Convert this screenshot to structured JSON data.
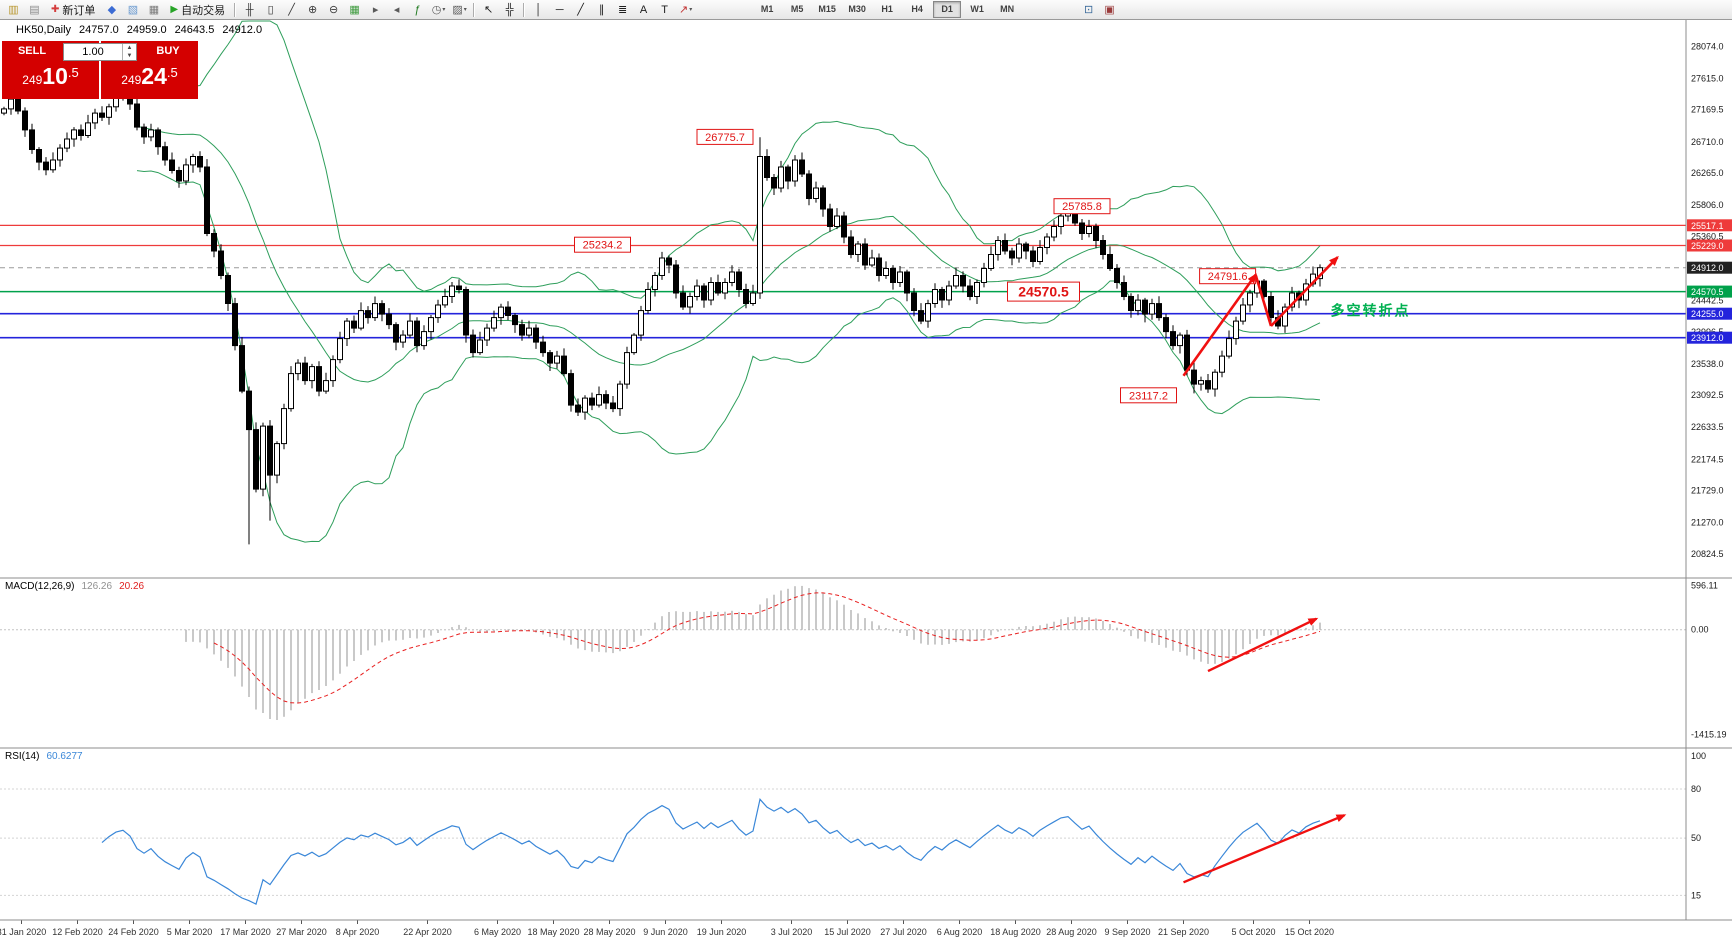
{
  "toolbar": {
    "left_items": [
      {
        "t": "icon",
        "name": "new-chart-icon",
        "g": "▥",
        "c": "#b8962e"
      },
      {
        "t": "icon",
        "name": "chart-profiles-icon",
        "g": "▤",
        "c": "#8a8a8a"
      },
      {
        "t": "btn",
        "name": "new-order-button",
        "g": "✚",
        "gc": "#d43c3c",
        "label": "新订单"
      },
      {
        "t": "icon",
        "name": "market-watch-icon",
        "g": "◆",
        "c": "#3c6cd4"
      },
      {
        "t": "icon",
        "name": "navigator-icon",
        "g": "▧",
        "c": "#6a9ad0"
      },
      {
        "t": "icon",
        "name": "terminal-icon",
        "g": "▦",
        "c": "#7a7a7a"
      },
      {
        "t": "btn",
        "name": "autotrading-button",
        "g": "▶",
        "gc": "#27a427",
        "label": "自动交易"
      },
      {
        "t": "sep"
      },
      {
        "t": "icon",
        "name": "bar-chart-icon",
        "g": "╫",
        "c": "#3a3a3a"
      },
      {
        "t": "icon",
        "name": "candlestick-chart-icon",
        "g": "▯",
        "c": "#3a3a3a"
      },
      {
        "t": "icon",
        "name": "line-chart-icon",
        "g": "╱",
        "c": "#3a3a3a"
      },
      {
        "t": "icon",
        "name": "zoom-in-icon",
        "g": "⊕",
        "c": "#3a3a3a"
      },
      {
        "t": "icon",
        "name": "zoom-out-icon",
        "g": "⊖",
        "c": "#3a3a3a"
      },
      {
        "t": "icon",
        "name": "tile-windows-icon",
        "g": "▦",
        "c": "#3c9a3c"
      },
      {
        "t": "icon",
        "name": "auto-scroll-icon",
        "g": "▸",
        "c": "#5a5a5a"
      },
      {
        "t": "icon",
        "name": "chart-shift-icon",
        "g": "◂",
        "c": "#5a5a5a"
      },
      {
        "t": "icon",
        "name": "indicators-icon",
        "g": "ƒ",
        "c": "#1f7a1f"
      },
      {
        "t": "icon-dd",
        "name": "periods-dropdown",
        "g": "◷",
        "c": "#5a5a5a"
      },
      {
        "t": "icon-dd",
        "name": "templates-dropdown",
        "g": "▨",
        "c": "#5a5a5a"
      },
      {
        "t": "sep"
      },
      {
        "t": "icon",
        "name": "cursor-icon",
        "g": "↖",
        "c": "#202020"
      },
      {
        "t": "icon",
        "name": "crosshair-icon",
        "g": "╬",
        "c": "#202020"
      },
      {
        "t": "sep"
      },
      {
        "t": "icon",
        "name": "vertical-line-icon",
        "g": "│",
        "c": "#202020"
      },
      {
        "t": "icon",
        "name": "horizontal-line-icon",
        "g": "─",
        "c": "#202020"
      },
      {
        "t": "icon",
        "name": "trendline-icon",
        "g": "╱",
        "c": "#202020"
      },
      {
        "t": "icon",
        "name": "equidistant-channel-icon",
        "g": "∥",
        "c": "#202020"
      },
      {
        "t": "icon",
        "name": "fibonacci-icon",
        "g": "≣",
        "c": "#202020"
      },
      {
        "t": "icon",
        "name": "text-icon",
        "g": "A",
        "c": "#202020"
      },
      {
        "t": "icon",
        "name": "text-label-icon",
        "g": "T",
        "c": "#202020"
      },
      {
        "t": "icon-dd",
        "name": "arrows-dropdown",
        "g": "↗",
        "c": "#c03030"
      }
    ],
    "timeframes": {
      "options": [
        "M1",
        "M5",
        "M15",
        "M30",
        "H1",
        "H4",
        "D1",
        "W1",
        "MN"
      ],
      "active": "D1"
    },
    "right_items": [
      {
        "t": "icon",
        "name": "fullscreen-icon",
        "g": "⊡",
        "c": "#3a6a9a"
      },
      {
        "t": "icon",
        "name": "print-preview-icon",
        "g": "▣",
        "c": "#9a3a3a"
      }
    ]
  },
  "header": {
    "symbol": "HK50,Daily",
    "open": "24757.0",
    "high": "24959.0",
    "low": "24643.5",
    "close": "24912.0"
  },
  "one_click": {
    "sell_label": "SELL",
    "buy_label": "BUY",
    "volume": "1.00",
    "bid": {
      "prefix": "249",
      "big": "10",
      "suffix": ".5"
    },
    "ask": {
      "prefix": "249",
      "big": "24",
      "suffix": ".5"
    }
  },
  "indicators": {
    "macd": {
      "label": "MACD(12,26,9)",
      "value_main": "126.26",
      "value_signal": "20.26"
    },
    "rsi": {
      "label": "RSI(14)",
      "value": "60.6277"
    }
  },
  "chart_data": {
    "type": "candlestick",
    "symbol": "HK50",
    "period": "Daily",
    "closes": [
      27180,
      27320,
      27150,
      26880,
      26600,
      26420,
      26310,
      26450,
      26620,
      26750,
      26880,
      26800,
      26980,
      27120,
      27060,
      27210,
      27330,
      27380,
      27250,
      26920,
      26780,
      26880,
      26640,
      26450,
      26300,
      26150,
      26380,
      26500,
      26350,
      25400,
      25150,
      24800,
      24400,
      23800,
      23150,
      22600,
      21750,
      22650,
      21950,
      22400,
      22900,
      23400,
      23550,
      23300,
      23500,
      23150,
      23300,
      23600,
      23900,
      24150,
      24050,
      24300,
      24200,
      24400,
      24250,
      24100,
      23850,
      23950,
      24150,
      23800,
      24000,
      24200,
      24380,
      24500,
      24650,
      24600,
      23950,
      23700,
      23880,
      24050,
      24200,
      24350,
      24230,
      24100,
      23950,
      24050,
      23850,
      23700,
      23550,
      23650,
      23400,
      22950,
      22850,
      23050,
      22950,
      23100,
      22980,
      22900,
      23250,
      23700,
      23950,
      24300,
      24600,
      24800,
      25050,
      24950,
      24550,
      24350,
      24500,
      24650,
      24450,
      24700,
      24550,
      24700,
      24850,
      24600,
      24400,
      24550,
      26500,
      26200,
      26050,
      26350,
      26150,
      26450,
      26250,
      25900,
      26050,
      25750,
      25500,
      25650,
      25350,
      25100,
      25250,
      24950,
      25050,
      24800,
      24900,
      24700,
      24850,
      24550,
      24300,
      24150,
      24400,
      24600,
      24450,
      24650,
      24800,
      24650,
      24500,
      24700,
      24900,
      25100,
      25300,
      25150,
      25050,
      25250,
      25150,
      25000,
      25200,
      25350,
      25500,
      25650,
      25700,
      25550,
      25400,
      25500,
      25300,
      25100,
      24900,
      24700,
      24500,
      24300,
      24450,
      24250,
      24400,
      24200,
      24000,
      23800,
      23950,
      23450,
      23250,
      23300,
      23180,
      23420,
      23650,
      23900,
      24150,
      24380,
      24550,
      24720,
      24500,
      24200,
      24080,
      24350,
      24550,
      24450,
      24680,
      24820,
      24912
    ],
    "overrides": {
      "35": {
        "l": 20960
      },
      "38": {
        "l": 21300
      },
      "108": {
        "h": 26775.7
      },
      "152": {
        "h": 25785.8
      },
      "170": {
        "l": 23117.2
      },
      "179": {
        "h": 24791.6
      },
      "188": {
        "o": 24757.0,
        "h": 24959.0,
        "l": 24643.5,
        "c": 24912.0
      }
    },
    "bollinger": {
      "period": 20,
      "deviation": 2
    },
    "styles": {
      "bull": "#ffffff",
      "bear": "#000000",
      "bollinger": "#2e9e5b",
      "macd_hist": "#b2b2b2",
      "macd_signal": "#e82020",
      "rsi": "#3a87d8",
      "arrow": "#f01010",
      "note_green": "#00b050",
      "label_red": "#e01414"
    },
    "hlines": [
      {
        "price": 25517.1,
        "color": "#ee3b3b",
        "tag": "#ee3b3b",
        "w": 1.2
      },
      {
        "price": 25229.0,
        "color": "#ee3b3b",
        "tag": "#ee3b3b",
        "w": 1.2
      },
      {
        "price": 24912.0,
        "color": "#9a9a9a",
        "dash": true,
        "tag": "#222222",
        "w": 1
      },
      {
        "price": 24570.5,
        "color": "#00a14b",
        "tag": "#00a14b",
        "w": 1.4
      },
      {
        "price": 24255.0,
        "color": "#2424dc",
        "tag": "#2424dc",
        "w": 1.6
      },
      {
        "price": 23912.0,
        "color": "#2424dc",
        "tag": "#2424dc",
        "w": 1.6
      }
    ],
    "price_ticks": [
      28074.0,
      27615.0,
      27169.5,
      26710.0,
      26265.0,
      25806.0,
      25360.5,
      24442.5,
      23996.5,
      23538.0,
      23092.5,
      22633.5,
      22174.5,
      21729.0,
      21270.0,
      20824.5
    ],
    "macd_ticks": [
      {
        "v": 596.11,
        "label": "596.11"
      },
      {
        "v": 0,
        "label": "0.00"
      },
      {
        "v": -1415.19,
        "label": "-1415.19"
      }
    ],
    "rsi_ticks": [
      {
        "v": 100,
        "label": "100"
      },
      {
        "v": 80,
        "label": "80"
      },
      {
        "v": 50,
        "label": "50"
      },
      {
        "v": 15,
        "label": "15"
      }
    ],
    "rsi_levels": [
      80,
      50,
      15
    ],
    "date_labels": [
      {
        "t": "31 Jan 2020",
        "i": 2.5
      },
      {
        "t": "12 Feb 2020",
        "i": 10.5
      },
      {
        "t": "24 Feb 2020",
        "i": 18.5
      },
      {
        "t": "5 Mar 2020",
        "i": 26.5
      },
      {
        "t": "17 Mar 2020",
        "i": 34.5
      },
      {
        "t": "27 Mar 2020",
        "i": 42.5
      },
      {
        "t": "8 Apr 2020",
        "i": 50.5
      },
      {
        "t": "22 Apr 2020",
        "i": 60.5
      },
      {
        "t": "6 May 2020",
        "i": 70.5
      },
      {
        "t": "18 May 2020",
        "i": 78.5
      },
      {
        "t": "28 May 2020",
        "i": 86.5
      },
      {
        "t": "9 Jun 2020",
        "i": 94.5
      },
      {
        "t": "19 Jun 2020",
        "i": 102.5
      },
      {
        "t": "3 Jul 2020",
        "i": 112.5
      },
      {
        "t": "15 Jul 2020",
        "i": 120.5
      },
      {
        "t": "27 Jul 2020",
        "i": 128.5
      },
      {
        "t": "6 Aug 2020",
        "i": 136.5
      },
      {
        "t": "18 Aug 2020",
        "i": 144.5
      },
      {
        "t": "28 Aug 2020",
        "i": 152.5
      },
      {
        "t": "9 Sep 2020",
        "i": 160.5
      },
      {
        "t": "21 Sep 2020",
        "i": 168.5
      },
      {
        "t": "5 Oct 2020",
        "i": 178.5
      },
      {
        "t": "15 Oct 2020",
        "i": 186.5
      }
    ],
    "annotations": {
      "price_labels": [
        {
          "text": "26775.7",
          "i": 103,
          "p": 26780,
          "size": "normal"
        },
        {
          "text": "25785.8",
          "i": 154,
          "p": 25790,
          "size": "normal"
        },
        {
          "text": "25234.2",
          "i": 85.5,
          "p": 25240,
          "size": "normal"
        },
        {
          "text": "24570.5",
          "i": 148.5,
          "p": 24570.5,
          "size": "big"
        },
        {
          "text": "24791.6",
          "i": 174.8,
          "p": 24790,
          "size": "normal"
        },
        {
          "text": "23117.2",
          "i": 163.5,
          "p": 23090,
          "size": "normal"
        }
      ],
      "note": {
        "text": "多空转折点",
        "i": 189.5,
        "p": 24230
      },
      "arrows_main": [
        {
          "i1": 168.5,
          "p1": 23370,
          "i2": 178.8,
          "p2": 24810,
          "head": true
        },
        {
          "i1": 178.8,
          "p1": 24810,
          "i2": 181,
          "p2": 24080,
          "head": false
        },
        {
          "i1": 181,
          "p1": 24080,
          "i2": 190.5,
          "p2": 25060,
          "head": true
        }
      ],
      "arrow_macd": {
        "i1": 172,
        "v1": -560,
        "i2": 187.5,
        "v2": 150
      },
      "arrow_rsi": {
        "i1": 168.5,
        "v1": 23,
        "i2": 191.5,
        "v2": 64
      }
    }
  }
}
